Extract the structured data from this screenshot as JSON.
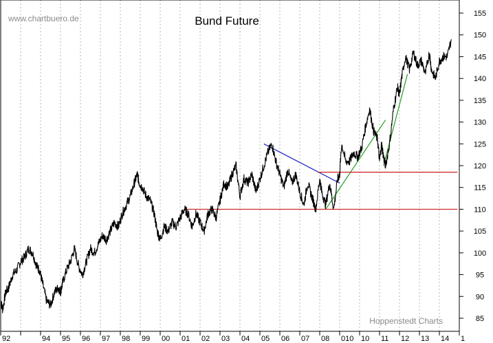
{
  "chart_data": {
    "type": "line",
    "title": "Bund Future",
    "watermark": "www.chartbuero.de",
    "credit": "Hoppenstedt Charts",
    "ylim": [
      82,
      158
    ],
    "yticks": [
      85,
      90,
      95,
      100,
      105,
      110,
      115,
      120,
      125,
      130,
      135,
      140,
      145,
      150,
      155
    ],
    "ytick_labels": [
      "85",
      "90",
      "95",
      "100",
      "105",
      "110",
      "115",
      "120",
      "125",
      "130",
      "135",
      "140",
      "145",
      "150",
      "155"
    ],
    "xlim": [
      1992.0,
      2015.0
    ],
    "xticks": [
      {
        "x": 1992.0,
        "label": "92"
      },
      {
        "x": 1993.0,
        "label": ""
      },
      {
        "x": 1994.0,
        "label": "94"
      },
      {
        "x": 1995.0,
        "label": "95"
      },
      {
        "x": 1996.0,
        "label": "96"
      },
      {
        "x": 1997.0,
        "label": "97"
      },
      {
        "x": 1998.0,
        "label": "98"
      },
      {
        "x": 1999.0,
        "label": "99"
      },
      {
        "x": 2000.0,
        "label": "00"
      },
      {
        "x": 2001.0,
        "label": "01"
      },
      {
        "x": 2002.0,
        "label": "02"
      },
      {
        "x": 2003.0,
        "label": "03"
      },
      {
        "x": 2004.0,
        "label": "04"
      },
      {
        "x": 2005.0,
        "label": "05"
      },
      {
        "x": 2006.0,
        "label": "06"
      },
      {
        "x": 2007.0,
        "label": "07"
      },
      {
        "x": 2008.0,
        "label": "08"
      },
      {
        "x": 2009.0,
        "label": "010"
      },
      {
        "x": 2010.0,
        "label": "10"
      },
      {
        "x": 2011.0,
        "label": "11"
      },
      {
        "x": 2012.0,
        "label": "12"
      },
      {
        "x": 2013.0,
        "label": "13"
      },
      {
        "x": 2014.0,
        "label": "14"
      },
      {
        "x": 2015.0,
        "label": "1"
      }
    ],
    "grid": "vertical-dotted",
    "series": [
      {
        "color": "#000000",
        "x": [
          1992.0,
          1992.1,
          1992.25,
          1992.4,
          1992.6,
          1992.8,
          1993.0,
          1993.2,
          1993.4,
          1993.6,
          1993.8,
          1993.95,
          1994.1,
          1994.3,
          1994.5,
          1994.7,
          1994.9,
          1995.0,
          1995.1,
          1995.3,
          1995.5,
          1995.7,
          1995.9,
          1996.1,
          1996.3,
          1996.5,
          1996.7,
          1996.9,
          1997.1,
          1997.3,
          1997.5,
          1997.7,
          1997.9,
          1998.1,
          1998.3,
          1998.5,
          1998.7,
          1998.85,
          1998.95,
          1999.1,
          1999.3,
          1999.5,
          1999.7,
          1999.85,
          2000.0,
          2000.2,
          2000.4,
          2000.6,
          2000.8,
          2001.0,
          2001.2,
          2001.4,
          2001.6,
          2001.8,
          2002.0,
          2002.2,
          2002.4,
          2002.6,
          2002.8,
          2003.0,
          2003.2,
          2003.4,
          2003.6,
          2003.8,
          2004.0,
          2004.2,
          2004.4,
          2004.6,
          2004.8,
          2005.0,
          2005.2,
          2005.4,
          2005.6,
          2005.8,
          2006.0,
          2006.2,
          2006.4,
          2006.6,
          2006.8,
          2007.0,
          2007.2,
          2007.4,
          2007.6,
          2007.8,
          2008.0,
          2008.1,
          2008.3,
          2008.5,
          2008.7,
          2008.9,
          2009.0,
          2009.1,
          2009.3,
          2009.5,
          2009.7,
          2009.9,
          2010.1,
          2010.3,
          2010.5,
          2010.7,
          2010.9,
          2011.0,
          2011.1,
          2011.2,
          2011.3,
          2011.5,
          2011.7,
          2011.9,
          2012.0,
          2012.1,
          2012.3,
          2012.5,
          2012.7,
          2012.9,
          2013.1,
          2013.3,
          2013.5,
          2013.6,
          2013.8,
          2014.0,
          2014.2,
          2014.4,
          2014.6
        ],
        "y": [
          89,
          87,
          91,
          92,
          95,
          96,
          98,
          99,
          101,
          100,
          97,
          96,
          93,
          89,
          88,
          91,
          92,
          91,
          93,
          96,
          98,
          101,
          97,
          95,
          98,
          101,
          100,
          102,
          104,
          103,
          105,
          107,
          106,
          109,
          111,
          113,
          116,
          118,
          116,
          115,
          113,
          112,
          109,
          105,
          103,
          106,
          105,
          107,
          106,
          108,
          110,
          109,
          106,
          109,
          107,
          105,
          109,
          110,
          108,
          112,
          116,
          115,
          118,
          120,
          113,
          117,
          116,
          118,
          114,
          117,
          120,
          123,
          125,
          121,
          118,
          115,
          119,
          116,
          118,
          114,
          111,
          116,
          113,
          110,
          117,
          114,
          111,
          116,
          110,
          117,
          118,
          125,
          121,
          121,
          123,
          122,
          124,
          129,
          133,
          128,
          126,
          121,
          125,
          122,
          120,
          125,
          133,
          138,
          136,
          140,
          145,
          142,
          146,
          143,
          144,
          141,
          146,
          142,
          140,
          144,
          145,
          145,
          149
        ]
      }
    ],
    "trendlines": [
      {
        "color": "#1a1acc",
        "from": [
          2005.2,
          125.0
        ],
        "to": [
          2009.0,
          116.0
        ]
      },
      {
        "color": "#1f9e1f",
        "from": [
          2008.3,
          110.0
        ],
        "to": [
          2011.3,
          130.5
        ]
      },
      {
        "color": "#1f9e1f",
        "from": [
          2011.2,
          120.0
        ],
        "to": [
          2012.4,
          141.0
        ]
      },
      {
        "color": "#cc1f1f",
        "from": [
          2001.2,
          110.0
        ],
        "to": [
          2014.9,
          110.0
        ]
      },
      {
        "color": "#cc1f1f",
        "from": [
          2007.9,
          118.5
        ],
        "to": [
          2014.9,
          118.5
        ]
      }
    ]
  }
}
